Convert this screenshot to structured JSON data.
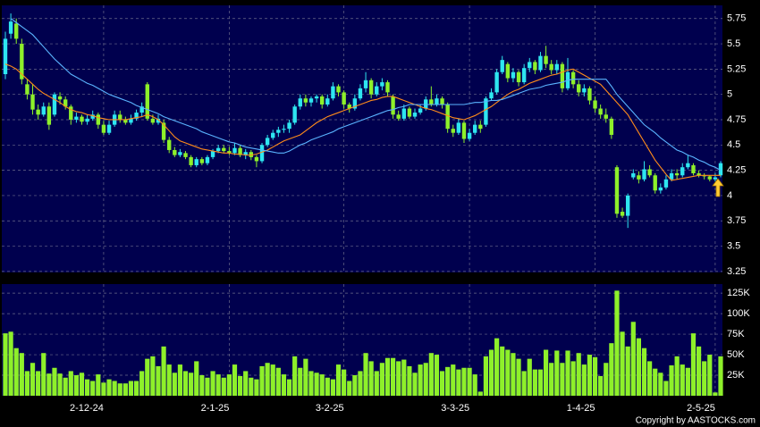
{
  "chart_data": [
    {
      "type": "candlestick",
      "up_color": "#2ee6f0",
      "down_color": "#8ef02a",
      "ylim": [
        3.24,
        5.88
      ],
      "yticks": [
        3.25,
        3.5,
        3.75,
        4,
        4.25,
        4.5,
        4.75,
        5,
        5.25,
        5.5,
        5.75
      ],
      "grid": true,
      "open": [
        5.2,
        5.6,
        5.7,
        5.5,
        5.1,
        5.0,
        4.85,
        4.8,
        4.88,
        4.8,
        4.98,
        4.95,
        4.88,
        4.75,
        4.78,
        4.73,
        4.76,
        4.8,
        4.7,
        4.62,
        4.7,
        4.8,
        4.75,
        4.72,
        4.76,
        4.82,
        5.1,
        4.76,
        4.72,
        4.72,
        4.55,
        4.45,
        4.4,
        4.42,
        4.38,
        4.3,
        4.36,
        4.32,
        4.38,
        4.44,
        4.47,
        4.44,
        4.42,
        4.47,
        4.4,
        4.43,
        4.38,
        4.34,
        4.5,
        4.57,
        4.62,
        4.65,
        4.66,
        4.72,
        4.88,
        4.96,
        4.92,
        4.96,
        4.98,
        4.9,
        4.96,
        5.08,
        5.02,
        4.9,
        4.86,
        4.96,
        5.06,
        5.14,
        5.0,
        5.08,
        5.12,
        4.98,
        4.8,
        4.76,
        4.86,
        4.78,
        4.82,
        4.86,
        4.95,
        4.9,
        4.96,
        4.9,
        4.66,
        4.62,
        4.72,
        4.56,
        4.62,
        4.7,
        4.7,
        4.96,
        5.02,
        5.22,
        5.3,
        5.16,
        5.22,
        5.12,
        5.26,
        5.32,
        5.24,
        5.38,
        5.3,
        5.24,
        5.3,
        5.06,
        5.22,
        5.1,
        5.02,
        5.06,
        4.94,
        4.86,
        4.8,
        4.76,
        4.28,
        3.84,
        3.8,
        4.18,
        4.2,
        4.16,
        4.26,
        4.2,
        4.05,
        4.08,
        4.16,
        4.22,
        4.2,
        4.28,
        4.3,
        4.22,
        4.2,
        4.19,
        4.16,
        4.2
      ],
      "high": [
        5.62,
        5.8,
        5.75,
        5.55,
        5.15,
        5.1,
        4.9,
        4.92,
        4.92,
        5.02,
        5.02,
        4.98,
        4.9,
        4.82,
        4.8,
        4.8,
        4.84,
        4.82,
        4.74,
        4.74,
        4.84,
        4.84,
        4.78,
        4.8,
        4.85,
        4.92,
        5.12,
        4.8,
        4.8,
        4.75,
        4.58,
        4.48,
        4.46,
        4.44,
        4.4,
        4.38,
        4.38,
        4.4,
        4.46,
        4.5,
        4.5,
        4.48,
        4.52,
        4.5,
        4.46,
        4.45,
        4.4,
        4.52,
        4.6,
        4.65,
        4.68,
        4.7,
        4.75,
        4.9,
        5.0,
        5.0,
        4.98,
        5.0,
        5.0,
        5.0,
        5.12,
        5.1,
        5.04,
        4.92,
        5.0,
        5.1,
        5.22,
        5.16,
        5.12,
        5.16,
        5.14,
        5.0,
        4.84,
        4.9,
        4.88,
        4.86,
        4.9,
        4.98,
        5.08,
        5.0,
        4.98,
        4.92,
        4.7,
        4.76,
        4.74,
        4.66,
        4.74,
        4.74,
        4.98,
        5.06,
        5.25,
        5.38,
        5.32,
        5.26,
        5.24,
        5.3,
        5.36,
        5.34,
        5.42,
        5.48,
        5.34,
        5.34,
        5.32,
        5.36,
        5.24,
        5.14,
        5.1,
        5.08,
        4.98,
        4.9,
        4.86,
        4.78,
        4.3,
        3.88,
        4.02,
        4.26,
        4.24,
        4.34,
        4.3,
        4.22,
        4.12,
        4.2,
        4.26,
        4.26,
        4.32,
        4.4,
        4.32,
        4.25,
        4.22,
        4.2,
        4.22,
        4.34
      ],
      "low": [
        5.15,
        5.55,
        5.5,
        5.1,
        4.95,
        4.8,
        4.75,
        4.78,
        4.65,
        4.78,
        4.9,
        4.85,
        4.7,
        4.72,
        4.7,
        4.7,
        4.74,
        4.66,
        4.6,
        4.6,
        4.68,
        4.72,
        4.7,
        4.7,
        4.74,
        4.78,
        4.74,
        4.7,
        4.7,
        4.52,
        4.42,
        4.38,
        4.38,
        4.36,
        4.28,
        4.28,
        4.3,
        4.3,
        4.36,
        4.42,
        4.42,
        4.4,
        4.4,
        4.38,
        4.36,
        4.35,
        4.28,
        4.32,
        4.48,
        4.55,
        4.58,
        4.62,
        4.62,
        4.7,
        4.85,
        4.88,
        4.88,
        4.92,
        4.86,
        4.88,
        4.94,
        4.98,
        4.86,
        4.82,
        4.84,
        4.94,
        5.02,
        4.96,
        4.98,
        5.04,
        4.98,
        4.76,
        4.74,
        4.74,
        4.76,
        4.76,
        4.8,
        4.84,
        4.88,
        4.88,
        4.86,
        4.62,
        4.58,
        4.6,
        4.52,
        4.54,
        4.6,
        4.62,
        4.68,
        4.94,
        5.0,
        5.2,
        5.12,
        5.12,
        5.08,
        5.1,
        5.22,
        5.2,
        5.22,
        5.26,
        5.2,
        5.2,
        5.02,
        5.04,
        5.06,
        4.98,
        4.98,
        4.9,
        4.82,
        4.76,
        4.72,
        4.56,
        3.78,
        3.78,
        3.68,
        4.16,
        4.12,
        4.14,
        4.18,
        4.02,
        4.02,
        4.06,
        4.14,
        4.16,
        4.18,
        4.26,
        4.2,
        4.18,
        4.16,
        4.14,
        4.14,
        4.18
      ],
      "close": [
        5.55,
        5.72,
        5.55,
        5.15,
        5.0,
        4.85,
        4.8,
        4.88,
        4.7,
        5.0,
        4.95,
        4.88,
        4.75,
        4.78,
        4.73,
        4.76,
        4.8,
        4.7,
        4.62,
        4.7,
        4.8,
        4.75,
        4.72,
        4.76,
        4.82,
        4.88,
        4.76,
        4.72,
        4.76,
        4.55,
        4.45,
        4.4,
        4.43,
        4.38,
        4.3,
        4.36,
        4.32,
        4.38,
        4.44,
        4.47,
        4.44,
        4.42,
        4.47,
        4.4,
        4.43,
        4.38,
        4.34,
        4.5,
        4.57,
        4.62,
        4.65,
        4.66,
        4.72,
        4.88,
        4.96,
        4.92,
        4.96,
        4.98,
        4.9,
        4.96,
        5.08,
        5.02,
        4.9,
        4.86,
        4.96,
        5.06,
        5.14,
        5.0,
        5.08,
        5.12,
        5.02,
        4.8,
        4.76,
        4.86,
        4.78,
        4.82,
        4.86,
        4.95,
        4.9,
        4.96,
        4.9,
        4.66,
        4.62,
        4.72,
        4.56,
        4.62,
        4.7,
        4.66,
        4.96,
        5.02,
        5.22,
        5.34,
        5.16,
        5.22,
        5.12,
        5.26,
        5.32,
        5.24,
        5.38,
        5.3,
        5.24,
        5.3,
        5.06,
        5.22,
        5.1,
        5.02,
        5.06,
        4.94,
        4.86,
        4.8,
        4.76,
        4.6,
        3.82,
        3.8,
        4.0,
        4.22,
        4.16,
        4.26,
        4.2,
        4.05,
        4.08,
        4.16,
        4.22,
        4.2,
        4.28,
        4.32,
        4.22,
        4.2,
        4.19,
        4.16,
        4.18,
        4.32
      ],
      "moving_averages": [
        {
          "color": "#ff8c1a",
          "values": [
            5.3,
            5.28,
            5.25,
            5.2,
            5.15,
            5.1,
            5.05,
            5.01,
            4.98,
            4.95,
            4.92,
            4.88,
            4.85,
            4.83,
            4.82,
            4.8,
            4.79,
            4.77,
            4.76,
            4.75,
            4.75,
            4.75,
            4.75,
            4.76,
            4.77,
            4.78,
            4.8,
            4.78,
            4.75,
            4.7,
            4.64,
            4.58,
            4.54,
            4.52,
            4.5,
            4.48,
            4.46,
            4.45,
            4.44,
            4.43,
            4.42,
            4.42,
            4.41,
            4.41,
            4.4,
            4.4,
            4.41,
            4.43,
            4.45,
            4.48,
            4.51,
            4.54,
            4.56,
            4.58,
            4.6,
            4.64,
            4.68,
            4.72,
            4.75,
            4.78,
            4.8,
            4.82,
            4.84,
            4.86,
            4.88,
            4.9,
            4.92,
            4.94,
            4.95,
            4.97,
            4.98,
            4.98,
            4.96,
            4.94,
            4.92,
            4.9,
            4.88,
            4.86,
            4.85,
            4.83,
            4.81,
            4.79,
            4.77,
            4.76,
            4.75,
            4.77,
            4.79,
            4.82,
            4.85,
            4.88,
            4.92,
            4.96,
            5.0,
            5.03,
            5.05,
            5.08,
            5.11,
            5.13,
            5.15,
            5.17,
            5.19,
            5.2,
            5.22,
            5.24,
            5.25,
            5.22,
            5.19,
            5.16,
            5.13,
            5.1,
            5.04,
            4.98,
            4.92,
            4.86,
            4.8,
            4.71,
            4.62,
            4.53,
            4.44,
            4.35,
            4.28,
            4.21,
            4.15,
            4.16,
            4.17,
            4.18,
            4.19,
            4.2,
            4.2,
            4.2,
            4.2,
            4.2
          ]
        },
        {
          "color": "#5ab4ff",
          "values": [
            null,
            5.75,
            5.71,
            5.67,
            5.63,
            5.59,
            5.53,
            5.47,
            5.41,
            5.35,
            5.3,
            5.25,
            5.2,
            5.17,
            5.14,
            5.11,
            5.09,
            5.06,
            5.03,
            5.0,
            4.98,
            4.96,
            4.94,
            4.92,
            4.89,
            4.87,
            4.85,
            4.83,
            4.81,
            4.78,
            4.76,
            4.74,
            4.72,
            4.7,
            4.68,
            4.66,
            4.63,
            4.61,
            4.59,
            4.57,
            4.55,
            4.53,
            4.52,
            4.5,
            4.48,
            4.47,
            4.46,
            4.45,
            4.44,
            4.43,
            4.42,
            4.42,
            4.44,
            4.47,
            4.5,
            4.52,
            4.55,
            4.57,
            4.59,
            4.61,
            4.63,
            4.66,
            4.68,
            4.7,
            4.72,
            4.74,
            4.76,
            4.78,
            4.8,
            4.82,
            4.84,
            4.85,
            4.87,
            4.88,
            4.9,
            4.9,
            4.9,
            4.9,
            4.9,
            4.9,
            4.9,
            4.9,
            4.9,
            4.9,
            4.9,
            4.91,
            4.92,
            4.92,
            4.93,
            4.94,
            4.94,
            4.95,
            4.97,
            4.99,
            5.01,
            5.03,
            5.05,
            5.06,
            5.07,
            5.09,
            5.1,
            5.11,
            5.12,
            5.14,
            5.15,
            5.15,
            5.15,
            5.15,
            5.15,
            5.15,
            5.15,
            5.08,
            5.0,
            4.94,
            4.88,
            4.82,
            4.76,
            4.7,
            4.66,
            4.62,
            4.57,
            4.53,
            4.49,
            4.45,
            4.43,
            4.4,
            4.38,
            4.35,
            4.33,
            4.3,
            4.28,
            4.25
          ]
        }
      ]
    },
    {
      "type": "bar",
      "color": "#8ef02a",
      "ylim": [
        0,
        136000
      ],
      "yticks": [
        {
          "value": 25000,
          "label": "25K"
        },
        {
          "value": 50000,
          "label": "50K"
        },
        {
          "value": 75000,
          "label": "75K"
        },
        {
          "value": 100000,
          "label": "100K"
        },
        {
          "value": 125000,
          "label": "125K"
        }
      ],
      "xlim": [
        0,
        131
      ],
      "xticks": [
        {
          "value": 18,
          "label": "2-12-24"
        },
        {
          "value": 41,
          "label": "2-1-25"
        },
        {
          "value": 62,
          "label": "3-2-25"
        },
        {
          "value": 85,
          "label": "3-3-25"
        },
        {
          "value": 108,
          "label": "1-4-25"
        },
        {
          "value": 130,
          "label": "2-5-25"
        }
      ],
      "grid": true,
      "values": [
        76000,
        78000,
        58000,
        52000,
        30000,
        40000,
        30000,
        52000,
        27000,
        34000,
        27000,
        22000,
        30000,
        25000,
        28000,
        20000,
        18000,
        26000,
        16000,
        20000,
        18000,
        15000,
        15000,
        18000,
        18000,
        30000,
        45000,
        48000,
        36000,
        60000,
        38000,
        28000,
        38000,
        30000,
        28000,
        42000,
        25000,
        22000,
        30000,
        26000,
        22000,
        26000,
        38000,
        24000,
        30000,
        22000,
        20000,
        36000,
        40000,
        38000,
        34000,
        26000,
        20000,
        48000,
        34000,
        45000,
        30000,
        28000,
        26000,
        22000,
        20000,
        38000,
        32000,
        18000,
        25000,
        30000,
        52000,
        42000,
        30000,
        40000,
        46000,
        46000,
        42000,
        44000,
        36000,
        28000,
        38000,
        40000,
        52000,
        50000,
        30000,
        35000,
        38000,
        32000,
        34000,
        34000,
        26000,
        5000,
        48000,
        56000,
        70000,
        60000,
        56000,
        52000,
        45000,
        30000,
        45000,
        32000,
        32000,
        56000,
        40000,
        55000,
        40000,
        55000,
        42000,
        52000,
        38000,
        50000,
        47000,
        24000,
        40000,
        64000,
        128000,
        78000,
        60000,
        90000,
        70000,
        58000,
        42000,
        33000,
        28000,
        18000,
        37000,
        48000,
        38000,
        34000,
        76000,
        60000,
        42000,
        50000,
        4000,
        48000
      ]
    }
  ],
  "footer": "Copyright by AASTOCKS.com"
}
